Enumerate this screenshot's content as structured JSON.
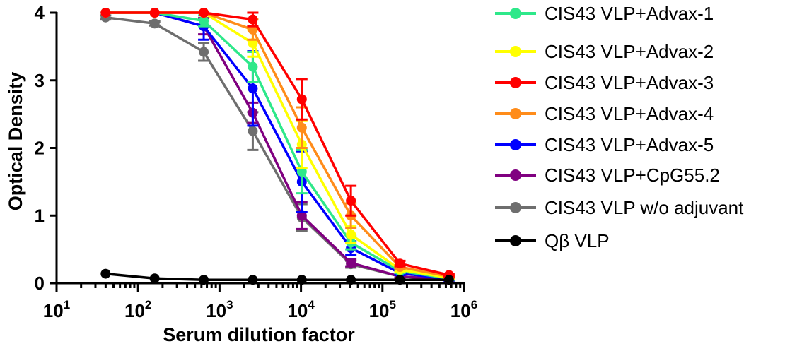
{
  "chart_data": {
    "type": "line",
    "xlabel": "Serum dilution factor",
    "ylabel": "Optical Density",
    "x_scale": "log10",
    "xlim": [
      10,
      1000000
    ],
    "ylim": [
      0,
      4
    ],
    "x_ticks": [
      {
        "value": 10,
        "base": "10",
        "exp": "1"
      },
      {
        "value": 100,
        "base": "10",
        "exp": "2"
      },
      {
        "value": 1000,
        "base": "10",
        "exp": "3"
      },
      {
        "value": 10000,
        "base": "10",
        "exp": "4"
      },
      {
        "value": 100000,
        "base": "10",
        "exp": "5"
      },
      {
        "value": 1000000,
        "base": "10",
        "exp": "6"
      }
    ],
    "y_ticks": [
      {
        "value": 0,
        "label": "0"
      },
      {
        "value": 1,
        "label": "1"
      },
      {
        "value": 2,
        "label": "2"
      },
      {
        "value": 3,
        "label": "3"
      },
      {
        "value": 4,
        "label": "4"
      }
    ],
    "x": [
      40,
      160,
      640,
      2560,
      10240,
      40960,
      163840,
      655360
    ],
    "legend_position": "right",
    "grid": false,
    "series": [
      {
        "name": "CIS43 VLP+Advax-1",
        "color": "#2ee88a",
        "values": [
          4.0,
          4.0,
          3.88,
          3.2,
          1.65,
          0.6,
          0.18,
          0.07
        ],
        "errors": [
          0,
          0,
          0.08,
          0.22,
          0.32,
          0.1,
          0.03,
          0.02
        ]
      },
      {
        "name": "CIS43 VLP+Advax-2",
        "color": "#ffff00",
        "values": [
          4.0,
          4.0,
          4.0,
          3.55,
          2.05,
          0.72,
          0.2,
          0.08
        ],
        "errors": [
          0,
          0,
          0,
          0.2,
          0.35,
          0.12,
          0.03,
          0.02
        ]
      },
      {
        "name": "CIS43 VLP+Advax-3",
        "color": "#ff0000",
        "values": [
          4.0,
          4.0,
          4.0,
          3.9,
          2.72,
          1.22,
          0.29,
          0.12
        ],
        "errors": [
          0,
          0,
          0,
          0.1,
          0.3,
          0.22,
          0.04,
          0.02
        ]
      },
      {
        "name": "CIS43 VLP+Advax-4",
        "color": "#ff8c1a",
        "values": [
          4.0,
          4.0,
          4.0,
          3.75,
          2.3,
          1.0,
          0.24,
          0.1
        ],
        "errors": [
          0,
          0,
          0,
          0.15,
          0.3,
          0.18,
          0.03,
          0.02
        ]
      },
      {
        "name": "CIS43 VLP+Advax-5",
        "color": "#0000ff",
        "values": [
          4.0,
          4.0,
          3.8,
          2.88,
          1.5,
          0.52,
          0.15,
          0.06
        ],
        "errors": [
          0,
          0,
          0.2,
          0.55,
          0.45,
          0.1,
          0.03,
          0.02
        ]
      },
      {
        "name": "CIS43 VLP+CpG55.2",
        "color": "#800080",
        "values": [
          4.0,
          4.0,
          3.8,
          2.52,
          1.0,
          0.3,
          0.1,
          0.05
        ],
        "errors": [
          0,
          0,
          0.12,
          0.15,
          0.2,
          0.05,
          0.02,
          0.01
        ]
      },
      {
        "name": "CIS43 VLP w/o adjuvant",
        "color": "#6e6e6e",
        "values": [
          3.93,
          3.84,
          3.42,
          2.25,
          0.97,
          0.28,
          0.1,
          0.05
        ],
        "errors": [
          0.03,
          0.03,
          0.13,
          0.28,
          0.2,
          0.05,
          0.02,
          0.01
        ]
      },
      {
        "name": "Qβ VLP",
        "color": "#000000",
        "values": [
          0.14,
          0.07,
          0.05,
          0.05,
          0.05,
          0.05,
          0.05,
          0.05
        ],
        "errors": [
          0,
          0,
          0,
          0,
          0,
          0,
          0,
          0
        ]
      }
    ]
  }
}
